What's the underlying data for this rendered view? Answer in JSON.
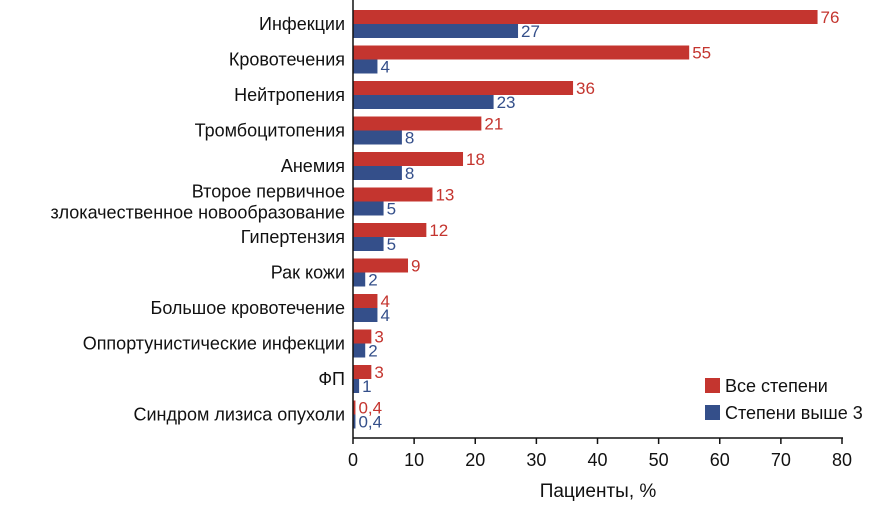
{
  "chart_data": {
    "type": "bar",
    "orientation": "horizontal",
    "title": "",
    "xlabel": "Пациенты, %",
    "ylabel": "",
    "xlim": [
      0,
      80
    ],
    "xticks": [
      "0",
      "10",
      "20",
      "30",
      "40",
      "50",
      "60",
      "70",
      "80"
    ],
    "grid": false,
    "legend_position": "bottom-right",
    "categories": [
      [
        "Инфекции"
      ],
      [
        "Кровотечения"
      ],
      [
        "Нейтропения"
      ],
      [
        "Тромбоцитопения"
      ],
      [
        "Анемия"
      ],
      [
        "Второе первичное",
        "злокачественное новообразование"
      ],
      [
        "Гипертензия"
      ],
      [
        "Рак кожи"
      ],
      [
        "Большое кровотечение"
      ],
      [
        "Оппортунистические инфекции"
      ],
      [
        "ФП"
      ],
      [
        "Синдром лизиса опухоли"
      ]
    ],
    "series": [
      {
        "name": "Все степени",
        "color": "#c4352f",
        "values": [
          76,
          55,
          36,
          21,
          18,
          13,
          12,
          9,
          4,
          3,
          3,
          0.4
        ],
        "labels": [
          "76",
          "55",
          "36",
          "21",
          "18",
          "13",
          "12",
          "9",
          "4",
          "3",
          "3",
          "0,4"
        ]
      },
      {
        "name": "Степени выше 3",
        "color": "#344f8a",
        "values": [
          27,
          4,
          23,
          8,
          8,
          5,
          5,
          2,
          4,
          2,
          1,
          0.4
        ],
        "labels": [
          "27",
          "4",
          "23",
          "8",
          "8",
          "5",
          "5",
          "2",
          "4",
          "2",
          "1",
          "0,4"
        ]
      }
    ]
  }
}
